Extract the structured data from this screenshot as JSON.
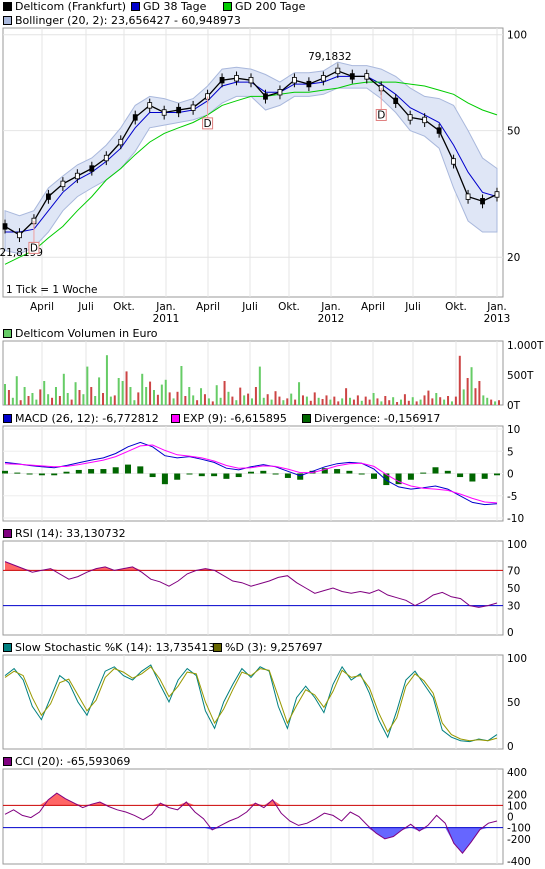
{
  "legends": {
    "price": [
      {
        "label": "Delticom (Frankfurt)",
        "color": "#000000"
      },
      {
        "label": "GD 38 Tage",
        "color": "#0000cc"
      },
      {
        "label": "GD 200 Tage",
        "color": "#00cc00"
      }
    ],
    "bollinger": {
      "label": "Bollinger (20, 2): 23,656427 - 60,948973",
      "color": "#a9b8dc"
    },
    "volume": {
      "label": "Delticom Volumen in Euro",
      "color": "#66cc66"
    },
    "macd": [
      {
        "label": "MACD (26, 12): -6,772812",
        "color": "#0000cc"
      },
      {
        "label": "EXP (9): -6,615895",
        "color": "#ff00ff"
      },
      {
        "label": "Divergence: -0,156917",
        "color": "#006600"
      }
    ],
    "rsi": {
      "label": "RSI (14): 33,130732",
      "color": "#800080"
    },
    "stoch": [
      {
        "label": "Slow Stochastic %K (14): 13,735413",
        "color": "#008080"
      },
      {
        "label": "%D (3): 9,257697",
        "color": "#666600"
      }
    ],
    "cci": {
      "label": "CCI (20): -65,593069",
      "color": "#800080"
    }
  },
  "annotations": {
    "tick_note": "1 Tick = 1 Woche",
    "high": "79,1832",
    "low": "21,8199",
    "dividend": "D"
  },
  "x_axis": {
    "months": [
      "April",
      "Juli",
      "Okt.",
      "Jan.",
      "April",
      "Juli",
      "Okt.",
      "Jan.",
      "April",
      "Juli",
      "Okt.",
      "Jan."
    ],
    "years": [
      "2011",
      "2012",
      "2013"
    ]
  },
  "chart_data": [
    {
      "type": "line",
      "title": "Delticom (Frankfurt)",
      "y_scale": "log",
      "ylim": [
        15,
        105
      ],
      "yticks": [
        "100",
        "50",
        "20"
      ],
      "x": [
        "2010-03",
        "2010-04",
        "2010-05",
        "2010-06",
        "2010-07",
        "2010-08",
        "2010-09",
        "2010-10",
        "2010-11",
        "2010-12",
        "2011-01",
        "2011-02",
        "2011-03",
        "2011-04",
        "2011-05",
        "2011-06",
        "2011-07",
        "2011-08",
        "2011-09",
        "2011-10",
        "2011-11",
        "2011-12",
        "2012-01",
        "2012-02",
        "2012-03",
        "2012-04",
        "2012-05",
        "2012-06",
        "2012-07",
        "2012-08",
        "2012-09",
        "2012-10",
        "2012-11",
        "2012-12",
        "2013-01"
      ],
      "series": [
        {
          "name": "Delticom (Frankfurt)",
          "values": [
            25,
            23.5,
            26,
            31,
            34,
            36,
            38,
            41,
            46,
            55,
            60,
            57,
            58,
            59,
            64,
            72,
            73,
            72,
            64,
            66,
            72,
            70,
            73,
            77,
            74,
            74,
            68,
            62,
            55,
            54,
            50,
            40,
            31,
            30,
            31.5
          ]
        },
        {
          "name": "GD 38 Tage",
          "values": [
            24,
            24,
            24.5,
            28,
            32,
            35,
            37,
            40,
            44,
            51,
            57,
            57,
            57,
            58,
            62,
            69,
            71,
            71,
            66,
            66,
            70,
            70,
            71,
            74,
            74,
            74,
            70,
            65,
            59,
            56,
            53,
            45,
            37,
            32,
            31
          ]
        },
        {
          "name": "GD 200 Tage",
          "values": [
            19,
            20,
            21,
            23,
            25,
            28,
            31,
            35,
            38,
            42,
            46,
            49,
            51,
            53,
            56,
            60,
            62,
            64,
            64,
            65,
            66,
            66,
            67,
            68,
            70,
            71,
            71,
            71,
            70,
            69,
            67,
            65,
            61,
            58,
            56
          ]
        },
        {
          "name": "Bollinger oben",
          "values": [
            28,
            27,
            28,
            33,
            36,
            39,
            41,
            45,
            51,
            60,
            64,
            63,
            61,
            63,
            69,
            78,
            79,
            78,
            75,
            71,
            76,
            76,
            77,
            82,
            80,
            80,
            78,
            74,
            68,
            64,
            63,
            60,
            50,
            41,
            38
          ]
        },
        {
          "name": "Bollinger unten",
          "values": [
            21,
            20.5,
            21.5,
            24,
            28,
            31,
            33,
            35,
            38,
            43,
            51,
            52,
            53,
            54,
            56,
            61,
            64,
            64,
            58,
            60,
            64,
            64,
            65,
            68,
            68,
            68,
            63,
            57,
            50,
            48,
            44,
            33,
            26,
            24,
            24
          ]
        }
      ],
      "high_label": "79,1832",
      "low_label": "21,8199",
      "dividends": [
        "2010-05",
        "2011-05",
        "2012-05"
      ]
    },
    {
      "type": "bar",
      "title": "Delticom Volumen in Euro",
      "yticks": [
        "1.000T",
        "500T",
        "0T"
      ],
      "ylim": [
        0,
        1000
      ],
      "values": [
        350,
        250,
        120,
        480,
        80,
        300,
        150,
        200,
        90,
        260,
        400,
        180,
        120,
        300,
        150,
        520,
        200,
        90,
        380,
        250,
        180,
        640,
        300,
        150,
        460,
        200,
        830,
        140,
        160,
        450,
        400,
        560,
        300,
        80,
        210,
        520,
        300,
        390,
        250,
        170,
        340,
        420,
        210,
        110,
        220,
        650,
        150,
        300,
        160,
        80,
        280,
        180,
        110,
        60,
        330,
        120,
        400,
        220,
        140,
        80,
        290,
        160,
        190,
        110,
        300,
        640,
        120,
        180,
        90,
        230,
        140,
        80,
        110,
        190,
        90,
        380,
        160,
        140,
        70,
        210,
        120,
        100,
        160,
        90,
        140,
        60,
        110,
        280,
        120,
        90,
        160,
        70,
        140,
        90,
        200,
        110,
        60,
        150,
        80,
        130,
        50,
        90,
        180,
        70,
        130,
        60,
        90,
        160,
        240,
        110,
        200,
        130,
        90,
        150,
        60,
        140,
        820,
        260,
        450,
        630,
        280,
        400,
        160,
        120,
        90,
        60,
        80
      ],
      "up": [
        true,
        false,
        true,
        true,
        false,
        true,
        false,
        true,
        true,
        false,
        true,
        true,
        false,
        true,
        false,
        true,
        true,
        false,
        true,
        false,
        true,
        true,
        false,
        true,
        true,
        false,
        true,
        true,
        false,
        true,
        true,
        false,
        true,
        true,
        false,
        true,
        true,
        false,
        true,
        false,
        true,
        true,
        false,
        true,
        false,
        true,
        false,
        true,
        true,
        false,
        true,
        false,
        true,
        false,
        true,
        true,
        false,
        true,
        false,
        true,
        false,
        true,
        false,
        true,
        false,
        true,
        true,
        false,
        true,
        false,
        false,
        true,
        false,
        true,
        false,
        true,
        false,
        true,
        false,
        false,
        true,
        false,
        false,
        true,
        false,
        false,
        true,
        false,
        true,
        false,
        false,
        true,
        false,
        false,
        true,
        false,
        true,
        false,
        false,
        true,
        false,
        true,
        false,
        false,
        true,
        false,
        true,
        false,
        false,
        false,
        true,
        false,
        true,
        false,
        true,
        false,
        false,
        true,
        false,
        true,
        false,
        false,
        true,
        true,
        false,
        true,
        false
      ]
    },
    {
      "type": "line",
      "title": "MACD (26, 12)",
      "ylim": [
        -10,
        10
      ],
      "yticks": [
        "10",
        "5",
        "0",
        "-5",
        "-10"
      ],
      "series": [
        {
          "name": "MACD (26, 12): -6,772812",
          "values": [
            2.5,
            2.2,
            1.8,
            1.5,
            1.3,
            1.8,
            2.4,
            3.0,
            3.5,
            4.5,
            6.0,
            7.0,
            6.0,
            4.0,
            3.5,
            3.8,
            3.2,
            2.5,
            1.2,
            0.8,
            1.5,
            2.0,
            1.5,
            0.5,
            -0.5,
            0.5,
            1.5,
            2.2,
            2.5,
            2.3,
            1.0,
            -1.5,
            -3.0,
            -3.5,
            -3.2,
            -2.8,
            -3.5,
            -5.0,
            -6.5,
            -7.0,
            -6.8
          ]
        },
        {
          "name": "EXP (9): -6,615895",
          "values": [
            2.2,
            2.1,
            1.9,
            1.7,
            1.5,
            1.6,
            2.0,
            2.5,
            3.0,
            3.8,
            5.0,
            6.2,
            6.4,
            5.2,
            4.2,
            3.9,
            3.5,
            2.8,
            1.8,
            1.2,
            1.3,
            1.7,
            1.6,
            1.0,
            0.2,
            0.2,
            0.9,
            1.7,
            2.2,
            2.3,
            1.6,
            -0.2,
            -1.8,
            -2.8,
            -3.3,
            -3.5,
            -3.8,
            -4.6,
            -5.6,
            -6.4,
            -6.6
          ]
        }
      ],
      "divergence": [
        0.3,
        0.1,
        -0.1,
        -0.2,
        -0.2,
        0.2,
        0.4,
        0.5,
        0.5,
        0.7,
        1.0,
        0.8,
        -0.4,
        -1.2,
        -0.7,
        -0.1,
        -0.3,
        -0.3,
        -0.6,
        -0.4,
        0.2,
        0.3,
        -0.1,
        -0.5,
        -0.7,
        0.3,
        0.6,
        0.5,
        0.3,
        0.0,
        -0.6,
        -1.3,
        -1.2,
        -0.7,
        0.1,
        0.7,
        0.3,
        -0.4,
        -0.9,
        -0.6,
        -0.2
      ]
    },
    {
      "type": "line",
      "title": "RSI (14)",
      "ylim": [
        0,
        100
      ],
      "yticks": [
        "100",
        "70",
        "50",
        "30",
        "0"
      ],
      "reference_lines": [
        70,
        30
      ],
      "values": [
        80,
        76,
        72,
        68,
        70,
        72,
        66,
        60,
        63,
        68,
        72,
        74,
        70,
        72,
        74,
        68,
        60,
        57,
        52,
        58,
        66,
        70,
        72,
        70,
        64,
        58,
        56,
        52,
        55,
        58,
        62,
        64,
        56,
        50,
        44,
        47,
        50,
        46,
        44,
        46,
        44,
        48,
        42,
        39,
        36,
        30,
        35,
        42,
        45,
        40,
        38,
        30,
        28,
        30,
        33
      ]
    },
    {
      "type": "line",
      "title": "Slow Stochastic %K (14)",
      "ylim": [
        0,
        100
      ],
      "yticks": [
        "100",
        "50",
        "0"
      ],
      "series": [
        {
          "name": "Slow Stochastic %K (14): 13,735413",
          "values": [
            80,
            88,
            75,
            45,
            30,
            55,
            80,
            72,
            50,
            35,
            60,
            85,
            90,
            80,
            75,
            85,
            92,
            70,
            50,
            75,
            88,
            80,
            40,
            20,
            50,
            70,
            88,
            78,
            90,
            85,
            45,
            20,
            55,
            68,
            55,
            38,
            70,
            90,
            75,
            82,
            60,
            30,
            10,
            40,
            75,
            85,
            70,
            55,
            18,
            10,
            6,
            5,
            8,
            6,
            13
          ]
        },
        {
          "name": "%D (3): 9,257697",
          "values": [
            78,
            85,
            80,
            55,
            35,
            48,
            72,
            76,
            58,
            40,
            52,
            78,
            88,
            84,
            77,
            82,
            90,
            76,
            56,
            68,
            84,
            82,
            50,
            26,
            42,
            64,
            84,
            80,
            88,
            86,
            56,
            26,
            46,
            64,
            58,
            44,
            62,
            86,
            78,
            80,
            66,
            38,
            16,
            32,
            68,
            82,
            74,
            60,
            26,
            13,
            8,
            6,
            7,
            6,
            9
          ]
        }
      ]
    },
    {
      "type": "area",
      "title": "CCI (20)",
      "ylim": [
        -400,
        400
      ],
      "yticks": [
        "400",
        "200",
        "100",
        "0",
        "-100",
        "-200",
        "-400"
      ],
      "reference_lines": [
        100,
        -100
      ],
      "values": [
        20,
        60,
        10,
        -10,
        40,
        150,
        210,
        160,
        120,
        80,
        110,
        130,
        90,
        60,
        40,
        10,
        -30,
        20,
        120,
        80,
        60,
        130,
        40,
        -20,
        -120,
        -80,
        -40,
        -10,
        40,
        120,
        80,
        150,
        30,
        -40,
        -80,
        -60,
        -20,
        30,
        10,
        -40,
        40,
        0,
        -80,
        -150,
        -200,
        -180,
        -120,
        -70,
        -130,
        -80,
        10,
        -60,
        -240,
        -330,
        -230,
        -120,
        -60,
        -40
      ]
    }
  ]
}
